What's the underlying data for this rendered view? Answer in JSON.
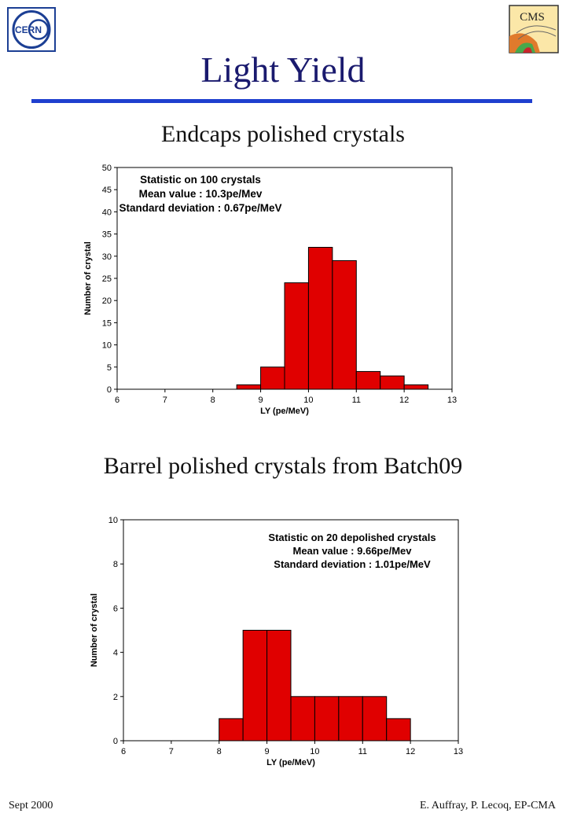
{
  "header": {
    "title": "Light Yield",
    "cern_logo_text": "CERN",
    "cms_logo_text": "CMS"
  },
  "sections": [
    {
      "title": "Endcaps polished crystals"
    },
    {
      "title": "Barrel polished crystals from Batch09"
    }
  ],
  "footer": {
    "left": "Sept 2000",
    "right": "E. Auffray, P. Lecoq,  EP-CMA"
  },
  "colors": {
    "bar": "#e00000",
    "title": "#1a1a6e",
    "rule": "#1f3fcf"
  },
  "chart_data": [
    {
      "type": "bar",
      "xlabel": "LY (pe/MeV)",
      "ylabel": "Number of crystal",
      "xlim": [
        6,
        13
      ],
      "ylim": [
        0,
        50
      ],
      "xticks": [
        6,
        7,
        8,
        9,
        10,
        11,
        12,
        13
      ],
      "yticks": [
        0,
        5,
        10,
        15,
        20,
        25,
        30,
        35,
        40,
        45,
        50
      ],
      "bin_width": 0.5,
      "bins": [
        8.5,
        9,
        9.5,
        10,
        10.5,
        11,
        11.5,
        12
      ],
      "values": [
        1,
        5,
        24,
        32,
        29,
        4,
        3,
        1
      ],
      "annotations": [
        "Statistic on 100  crystals",
        "Mean value : 10.3pe/Mev",
        "Standard deviation : 0.67pe/MeV"
      ],
      "annotation_position": "top-left"
    },
    {
      "type": "bar",
      "xlabel": "LY (pe/MeV)",
      "ylabel": "Number of crystal",
      "xlim": [
        6,
        13
      ],
      "ylim": [
        0,
        10
      ],
      "xticks": [
        6,
        7,
        8,
        9,
        10,
        11,
        12,
        13
      ],
      "yticks": [
        0,
        2,
        4,
        6,
        8,
        10
      ],
      "bin_width": 0.5,
      "bins": [
        8,
        8.5,
        9,
        9.5,
        10,
        10.5,
        11,
        11.5
      ],
      "values": [
        1,
        5,
        5,
        2,
        2,
        2,
        2,
        1
      ],
      "annotations": [
        "Statistic on 20 depolished crystals",
        "Mean value : 9.66pe/Mev",
        "Standard deviation : 1.01pe/MeV"
      ],
      "annotation_position": "top-right"
    }
  ]
}
